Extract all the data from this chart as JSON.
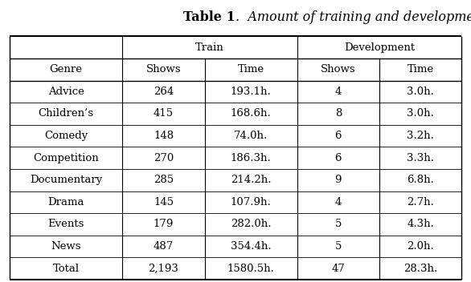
{
  "title_bold": "Table 1",
  "title_italic": ".  Amount of training and development data.",
  "col_headers_level2": [
    "Genre",
    "Shows",
    "Time",
    "Shows",
    "Time"
  ],
  "rows": [
    [
      "Advice",
      "264",
      "193.1h.",
      "4",
      "3.0h."
    ],
    [
      "Children’s",
      "415",
      "168.6h.",
      "8",
      "3.0h."
    ],
    [
      "Comedy",
      "148",
      "74.0h.",
      "6",
      "3.2h."
    ],
    [
      "Competition",
      "270",
      "186.3h.",
      "6",
      "3.3h."
    ],
    [
      "Documentary",
      "285",
      "214.2h.",
      "9",
      "6.8h."
    ],
    [
      "Drama",
      "145",
      "107.9h.",
      "4",
      "2.7h."
    ],
    [
      "Events",
      "179",
      "282.0h.",
      "5",
      "4.3h."
    ],
    [
      "News",
      "487",
      "354.4h.",
      "5",
      "2.0h."
    ]
  ],
  "total_row": [
    "Total",
    "2,193",
    "1580.5h.",
    "47",
    "28.3h."
  ],
  "bg_color": "#ffffff",
  "text_color": "#000000",
  "font_size": 9.5,
  "title_font_size": 11.5
}
